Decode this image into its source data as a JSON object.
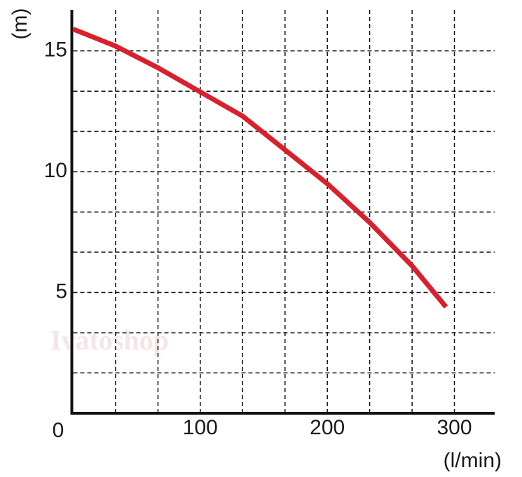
{
  "chart_data": {
    "type": "line",
    "x_label": "(l/min)",
    "y_label": "(m)",
    "watermark": "Ivatoshop",
    "x": [
      0,
      33.3,
      66.7,
      100,
      133.3,
      166.7,
      200,
      233.3,
      266.7,
      293.4
    ],
    "series": [
      {
        "color": "#d9202c",
        "values": [
          15.9,
          15.2,
          14.3,
          13.3,
          12.3,
          10.9,
          9.5,
          7.9,
          6.1,
          4.4
        ]
      }
    ],
    "xlim": [
      0,
      331.7
    ],
    "ylim": [
      0,
      16.7
    ],
    "xticks": [
      0,
      100,
      200,
      300
    ],
    "yticks": [
      5,
      10,
      15
    ],
    "xgrid": [
      33.3,
      66.7,
      100,
      133.3,
      166.7,
      200,
      233.3,
      266.7,
      300
    ],
    "ygrid": [
      1.67,
      3.33,
      5,
      6.67,
      8.33,
      10,
      11.67,
      13.33,
      15
    ],
    "grid": true
  }
}
